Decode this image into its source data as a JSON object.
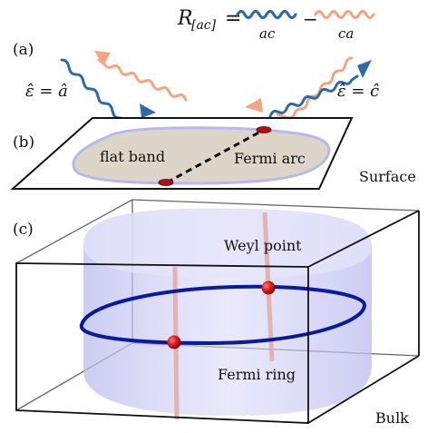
{
  "equation": {
    "lhs_symbol": "R",
    "lhs_subscript": "[ac]",
    "equals": "=",
    "minus": "−",
    "term1_label": "ac",
    "term2_label": "ca"
  },
  "panels": {
    "a": {
      "tag": "(a)",
      "left_polarization": "ε̂ = â",
      "right_polarization": "ε̂ = ĉ"
    },
    "b": {
      "tag": "(b)",
      "flat_band_label": "flat band",
      "fermi_arc_label": "Fermi arc",
      "surface_label": "Surface"
    },
    "c": {
      "tag": "(c)",
      "weyl_point_label": "Weyl point",
      "fermi_ring_label": "Fermi ring",
      "bulk_label": "Bulk"
    }
  },
  "colors": {
    "blue_wave": "#2f6aa8",
    "orange_wave": "#f4a480",
    "ring": "#0a1a9e",
    "weyl_point": "#cc1111",
    "flat_band": "#ddd5c8",
    "cylinder": "#c9c9f2"
  }
}
